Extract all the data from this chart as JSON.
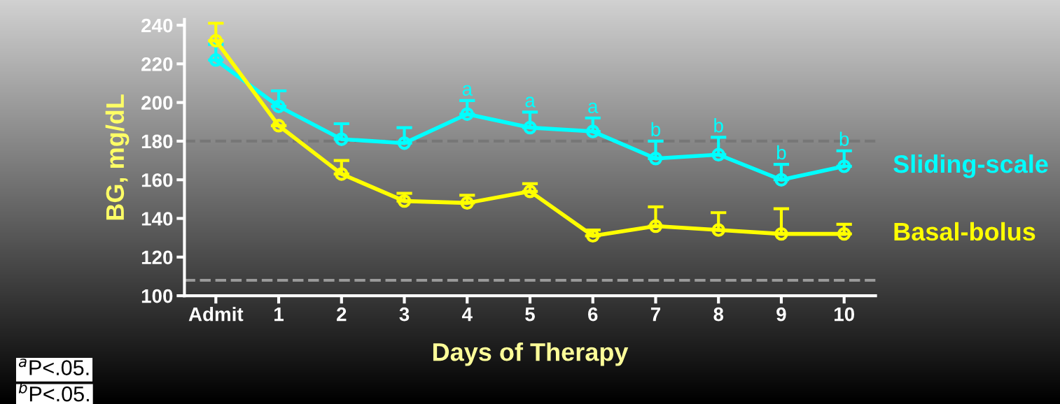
{
  "chart_data": {
    "type": "line",
    "xlabel": "Days of Therapy",
    "ylabel": "BG, mg/dL",
    "categories": [
      "Admit",
      "1",
      "2",
      "3",
      "4",
      "5",
      "6",
      "7",
      "8",
      "9",
      "10"
    ],
    "ylim": [
      100,
      243
    ],
    "yticks": [
      100,
      120,
      140,
      160,
      180,
      200,
      220,
      240
    ],
    "series": [
      {
        "name": "Sliding-scale",
        "color": "#00ffff",
        "values": [
          222,
          198,
          181,
          179,
          194,
          187,
          185,
          171,
          173,
          160,
          167
        ],
        "errors": [
          [
            222,
            230
          ],
          [
            198,
            206
          ],
          [
            181,
            189
          ],
          [
            179,
            187
          ],
          [
            194,
            201
          ],
          [
            187,
            195
          ],
          [
            185,
            192
          ],
          [
            171,
            180
          ],
          [
            173,
            182
          ],
          [
            160,
            168
          ],
          [
            167,
            175
          ]
        ]
      },
      {
        "name": "Basal-bolus",
        "color": "#ffff00",
        "values": [
          232,
          188,
          163,
          149,
          148,
          154,
          131,
          136,
          134,
          132,
          132
        ],
        "errors": [
          [
            232,
            241
          ],
          [
            188,
            188
          ],
          [
            163,
            170
          ],
          [
            149,
            153
          ],
          [
            148,
            152
          ],
          [
            154,
            158
          ],
          [
            131,
            134
          ],
          [
            136,
            146
          ],
          [
            134,
            143
          ],
          [
            132,
            145
          ],
          [
            132,
            137
          ]
        ]
      }
    ],
    "ref_lines": [
      {
        "axis": "y",
        "value": 180,
        "color": "#777777",
        "line_style": "dashed"
      },
      {
        "axis": "y",
        "value": 108,
        "color": "#999999",
        "line_style": "dashed"
      }
    ],
    "annotations": [
      {
        "text": "a",
        "x": "4",
        "y": 201
      },
      {
        "text": "a",
        "x": "5",
        "y": 195
      },
      {
        "text": "a",
        "x": "6",
        "y": 192
      },
      {
        "text": "b",
        "x": "7",
        "y": 180
      },
      {
        "text": "b",
        "x": "8",
        "y": 182
      },
      {
        "text": "b",
        "x": "9",
        "y": 168
      },
      {
        "text": "b",
        "x": "10",
        "y": 175
      },
      "$^{a}$P<.05.",
      "$^{b}$P<.05."
    ],
    "marker": "circle",
    "line_style": "solid",
    "grid": false,
    "legend": false
  }
}
